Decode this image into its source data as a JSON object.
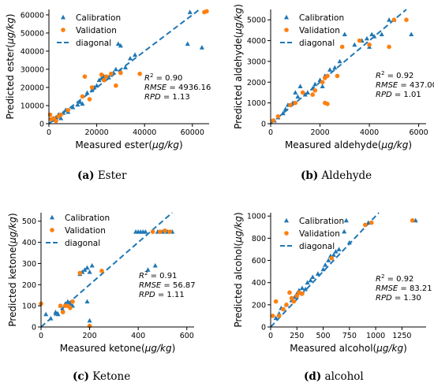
{
  "colors": {
    "calibration": "#1f77b4",
    "validation": "#ff7f0e",
    "diagonal": "#1f77b4"
  },
  "legend": {
    "calibration": "Calibration",
    "validation": "Validation",
    "diagonal": "diagonal"
  },
  "captions": [
    {
      "letter": "(a)",
      "text": "Ester"
    },
    {
      "letter": "(b)",
      "text": "Aldehyde"
    },
    {
      "letter": "(c)",
      "text": "Ketone"
    },
    {
      "letter": "(d)",
      "text": "alcohol"
    }
  ],
  "chart_data": [
    {
      "type": "scatter",
      "xlabel": "Measured ester(μg/kg)",
      "ylabel": "Predicted ester(μg/kg)",
      "xlim": [
        0,
        67000
      ],
      "ylim": [
        0,
        63000
      ],
      "xticks": [
        0,
        20000,
        40000,
        60000
      ],
      "yticks": [
        0,
        10000,
        20000,
        30000,
        40000,
        50000,
        60000
      ],
      "legend_position": "top-left",
      "stats": {
        "r2": "0.90",
        "rmse": "4936.16",
        "rpd": "1.13"
      },
      "series": [
        {
          "name": "Calibration",
          "marker": "triangle",
          "points": [
            [
              1500,
              2000
            ],
            [
              3000,
              3500
            ],
            [
              4000,
              5000
            ],
            [
              5000,
              3000
            ],
            [
              6000,
              6000
            ],
            [
              7000,
              7500
            ],
            [
              8000,
              6500
            ],
            [
              10000,
              9000
            ],
            [
              12000,
              10500
            ],
            [
              13000,
              12000
            ],
            [
              14000,
              11000
            ],
            [
              16000,
              17000
            ],
            [
              18000,
              18500
            ],
            [
              19000,
              20000
            ],
            [
              20000,
              21000
            ],
            [
              21000,
              24000
            ],
            [
              22000,
              25000
            ],
            [
              23000,
              26000
            ],
            [
              25000,
              25500
            ],
            [
              26000,
              27000
            ],
            [
              27000,
              28000
            ],
            [
              28000,
              30000
            ],
            [
              30000,
              29000
            ],
            [
              32000,
              31000
            ],
            [
              34000,
              36000
            ],
            [
              36000,
              38000
            ],
            [
              29000,
              44000
            ],
            [
              30000,
              43000
            ],
            [
              58000,
              44000
            ],
            [
              59000,
              61500
            ],
            [
              64000,
              42000
            ]
          ]
        },
        {
          "name": "Validation",
          "marker": "circle",
          "points": [
            [
              500,
              5000
            ],
            [
              1000,
              2500
            ],
            [
              2000,
              3000
            ],
            [
              3000,
              1500
            ],
            [
              4000,
              4000
            ],
            [
              5000,
              5000
            ],
            [
              8000,
              7500
            ],
            [
              14000,
              15000
            ],
            [
              15000,
              26000
            ],
            [
              17000,
              13500
            ],
            [
              18000,
              20000
            ],
            [
              22000,
              27000
            ],
            [
              23000,
              24000
            ],
            [
              24000,
              26000
            ],
            [
              26000,
              27500
            ],
            [
              28000,
              21000
            ],
            [
              30000,
              28000
            ],
            [
              38000,
              27500
            ],
            [
              65000,
              61500
            ],
            [
              66000,
              62000
            ]
          ]
        }
      ]
    },
    {
      "type": "scatter",
      "xlabel": "Measured aldehyde(μg/kg)",
      "ylabel": "Predicted aldehyde(μg/kg)",
      "xlim": [
        0,
        6300
      ],
      "ylim": [
        0,
        5500
      ],
      "xticks": [
        0,
        2000,
        4000,
        6000
      ],
      "yticks": [
        0,
        1000,
        2000,
        3000,
        4000,
        5000
      ],
      "legend_position": "top-left",
      "stats": {
        "r2": "0.92",
        "rmse": "437.00",
        "rpd": "1.01"
      },
      "series": [
        {
          "name": "Calibration",
          "marker": "triangle",
          "points": [
            [
              150,
              150
            ],
            [
              300,
              300
            ],
            [
              500,
              500
            ],
            [
              600,
              700
            ],
            [
              700,
              900
            ],
            [
              900,
              1000
            ],
            [
              1000,
              1500
            ],
            [
              1100,
              1300
            ],
            [
              1200,
              1800
            ],
            [
              1400,
              1400
            ],
            [
              1500,
              1500
            ],
            [
              1700,
              1700
            ],
            [
              1800,
              1900
            ],
            [
              2000,
              2100
            ],
            [
              2100,
              1800
            ],
            [
              2200,
              2300
            ],
            [
              2400,
              2600
            ],
            [
              2600,
              2700
            ],
            [
              2800,
              3000
            ],
            [
              3000,
              4300
            ],
            [
              3400,
              3800
            ],
            [
              3700,
              4000
            ],
            [
              3900,
              4100
            ],
            [
              4100,
              4300
            ],
            [
              4200,
              4200
            ],
            [
              4500,
              4300
            ],
            [
              4800,
              5000
            ],
            [
              5000,
              5000
            ],
            [
              5700,
              4300
            ],
            [
              4000,
              3700
            ]
          ]
        },
        {
          "name": "Validation",
          "marker": "circle",
          "points": [
            [
              100,
              150
            ],
            [
              300,
              350
            ],
            [
              800,
              900
            ],
            [
              1000,
              1000
            ],
            [
              1300,
              1500
            ],
            [
              1700,
              1400
            ],
            [
              1800,
              1600
            ],
            [
              2100,
              2000
            ],
            [
              2200,
              2200
            ],
            [
              2200,
              1000
            ],
            [
              2300,
              950
            ],
            [
              2300,
              2300
            ],
            [
              2700,
              2300
            ],
            [
              2900,
              3700
            ],
            [
              3600,
              4000
            ],
            [
              4000,
              3800
            ],
            [
              4800,
              3700
            ],
            [
              5000,
              5000
            ],
            [
              5500,
              5000
            ]
          ]
        }
      ]
    },
    {
      "type": "scatter",
      "xlabel": "Measured ketone(μg/kg)",
      "ylabel": "Predicted ketone(μg/kg)",
      "xlim": [
        0,
        630
      ],
      "ylim": [
        0,
        540
      ],
      "xticks": [
        0,
        200,
        400,
        600
      ],
      "yticks": [
        0,
        100,
        200,
        300,
        400,
        500
      ],
      "legend_position": "top-left",
      "stats": {
        "r2": "0.91",
        "rmse": "56.87",
        "rpd": "1.11"
      },
      "series": [
        {
          "name": "Calibration",
          "marker": "triangle",
          "points": [
            [
              20,
              60
            ],
            [
              40,
              40
            ],
            [
              60,
              70
            ],
            [
              70,
              60
            ],
            [
              80,
              100
            ],
            [
              90,
              80
            ],
            [
              100,
              110
            ],
            [
              110,
              120
            ],
            [
              120,
              110
            ],
            [
              130,
              100
            ],
            [
              160,
              250
            ],
            [
              170,
              260
            ],
            [
              180,
              270
            ],
            [
              190,
              280
            ],
            [
              200,
              260
            ],
            [
              210,
              290
            ],
            [
              190,
              120
            ],
            [
              200,
              30
            ],
            [
              390,
              450
            ],
            [
              400,
              450
            ],
            [
              410,
              450
            ],
            [
              420,
              450
            ],
            [
              430,
              450
            ],
            [
              440,
              270
            ],
            [
              470,
              290
            ],
            [
              480,
              450
            ],
            [
              500,
              450
            ],
            [
              520,
              450
            ],
            [
              540,
              450
            ]
          ]
        },
        {
          "name": "Validation",
          "marker": "circle",
          "points": [
            [
              0,
              110
            ],
            [
              80,
              100
            ],
            [
              90,
              70
            ],
            [
              100,
              100
            ],
            [
              110,
              100
            ],
            [
              120,
              90
            ],
            [
              130,
              120
            ],
            [
              160,
              255
            ],
            [
              200,
              5
            ],
            [
              250,
              265
            ],
            [
              460,
              450
            ],
            [
              490,
              450
            ],
            [
              510,
              455
            ],
            [
              530,
              450
            ]
          ]
        }
      ]
    },
    {
      "type": "scatter",
      "xlabel": "Measured alcohol(μg/kg)",
      "ylabel": "Predicted alcohol(μg/kg)",
      "xlim": [
        0,
        1480
      ],
      "ylim": [
        0,
        1030
      ],
      "xticks": [
        0,
        250,
        500,
        750,
        1000,
        1250
      ],
      "yticks": [
        0,
        200,
        400,
        600,
        800,
        1000
      ],
      "legend_position": "top-left",
      "stats": {
        "r2": "0.92",
        "rmse": "83.21",
        "rpd": "1.30"
      },
      "series": [
        {
          "name": "Calibration",
          "marker": "triangle",
          "points": [
            [
              50,
              80
            ],
            [
              80,
              120
            ],
            [
              100,
              170
            ],
            [
              150,
              200
            ],
            [
              200,
              240
            ],
            [
              230,
              270
            ],
            [
              250,
              300
            ],
            [
              270,
              330
            ],
            [
              300,
              350
            ],
            [
              330,
              340
            ],
            [
              350,
              400
            ],
            [
              380,
              420
            ],
            [
              400,
              450
            ],
            [
              450,
              480
            ],
            [
              500,
              520
            ],
            [
              520,
              560
            ],
            [
              550,
              600
            ],
            [
              570,
              640
            ],
            [
              600,
              650
            ],
            [
              620,
              680
            ],
            [
              650,
              700
            ],
            [
              700,
              860
            ],
            [
              720,
              960
            ],
            [
              750,
              760
            ],
            [
              930,
              940
            ],
            [
              1380,
              960
            ]
          ]
        },
        {
          "name": "Validation",
          "marker": "circle",
          "points": [
            [
              20,
              100
            ],
            [
              50,
              230
            ],
            [
              80,
              100
            ],
            [
              120,
              160
            ],
            [
              150,
              200
            ],
            [
              180,
              310
            ],
            [
              200,
              260
            ],
            [
              220,
              230
            ],
            [
              250,
              280
            ],
            [
              270,
              310
            ],
            [
              300,
              300
            ],
            [
              580,
              620
            ],
            [
              900,
              920
            ],
            [
              960,
              940
            ],
            [
              1350,
              960
            ]
          ]
        }
      ]
    }
  ]
}
